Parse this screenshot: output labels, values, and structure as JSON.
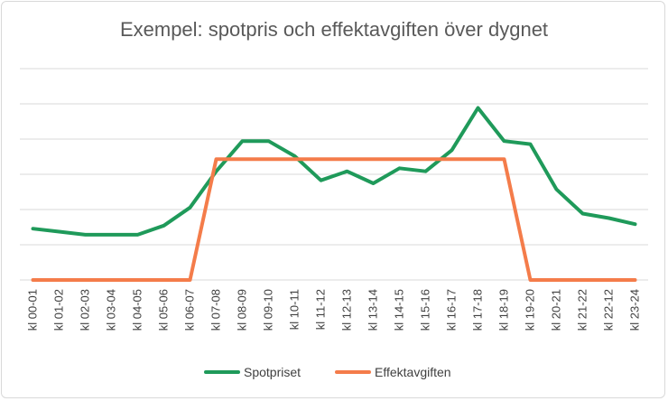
{
  "chart_data": {
    "type": "line",
    "title": "Exempel: spotpris och effektavgiften över dygnet",
    "xlabel": "",
    "ylabel": "",
    "ylim": [
      0,
      7
    ],
    "y_ticks_shown": false,
    "grid": "horizontal",
    "legend_position": "bottom",
    "categories": [
      "kl 00-01",
      "kl 01-02",
      "kl 02-03",
      "kl 03-04",
      "kl 04-05",
      "kl 05-06",
      "kl 06-07",
      "kl 07-08",
      "kl 08-09",
      "kl 09-10",
      "kl 10-11",
      "kl 11-12",
      "kl 12-13",
      "kl 13-14",
      "kl 14-15",
      "kl 15-16",
      "kl 16-17",
      "kl 17-18",
      "kl 18-19",
      "kl 19-20",
      "kl 20-21",
      "kl 21-22",
      "kl 22-12",
      "kl 23-24"
    ],
    "series": [
      {
        "name": "Spotpriset",
        "color": "#1f9a5a",
        "values": [
          1.7,
          1.6,
          1.5,
          1.5,
          1.5,
          1.8,
          2.4,
          3.6,
          4.6,
          4.6,
          4.1,
          3.3,
          3.6,
          3.2,
          3.7,
          3.6,
          4.3,
          5.7,
          4.6,
          4.5,
          3.0,
          2.2,
          2.05,
          1.85
        ]
      },
      {
        "name": "Effektavgiften",
        "color": "#f47c4a",
        "values": [
          0,
          0,
          0,
          0,
          0,
          0,
          0,
          4,
          4,
          4,
          4,
          4,
          4,
          4,
          4,
          4,
          4,
          4,
          4,
          0,
          0,
          0,
          0,
          0
        ]
      }
    ]
  }
}
